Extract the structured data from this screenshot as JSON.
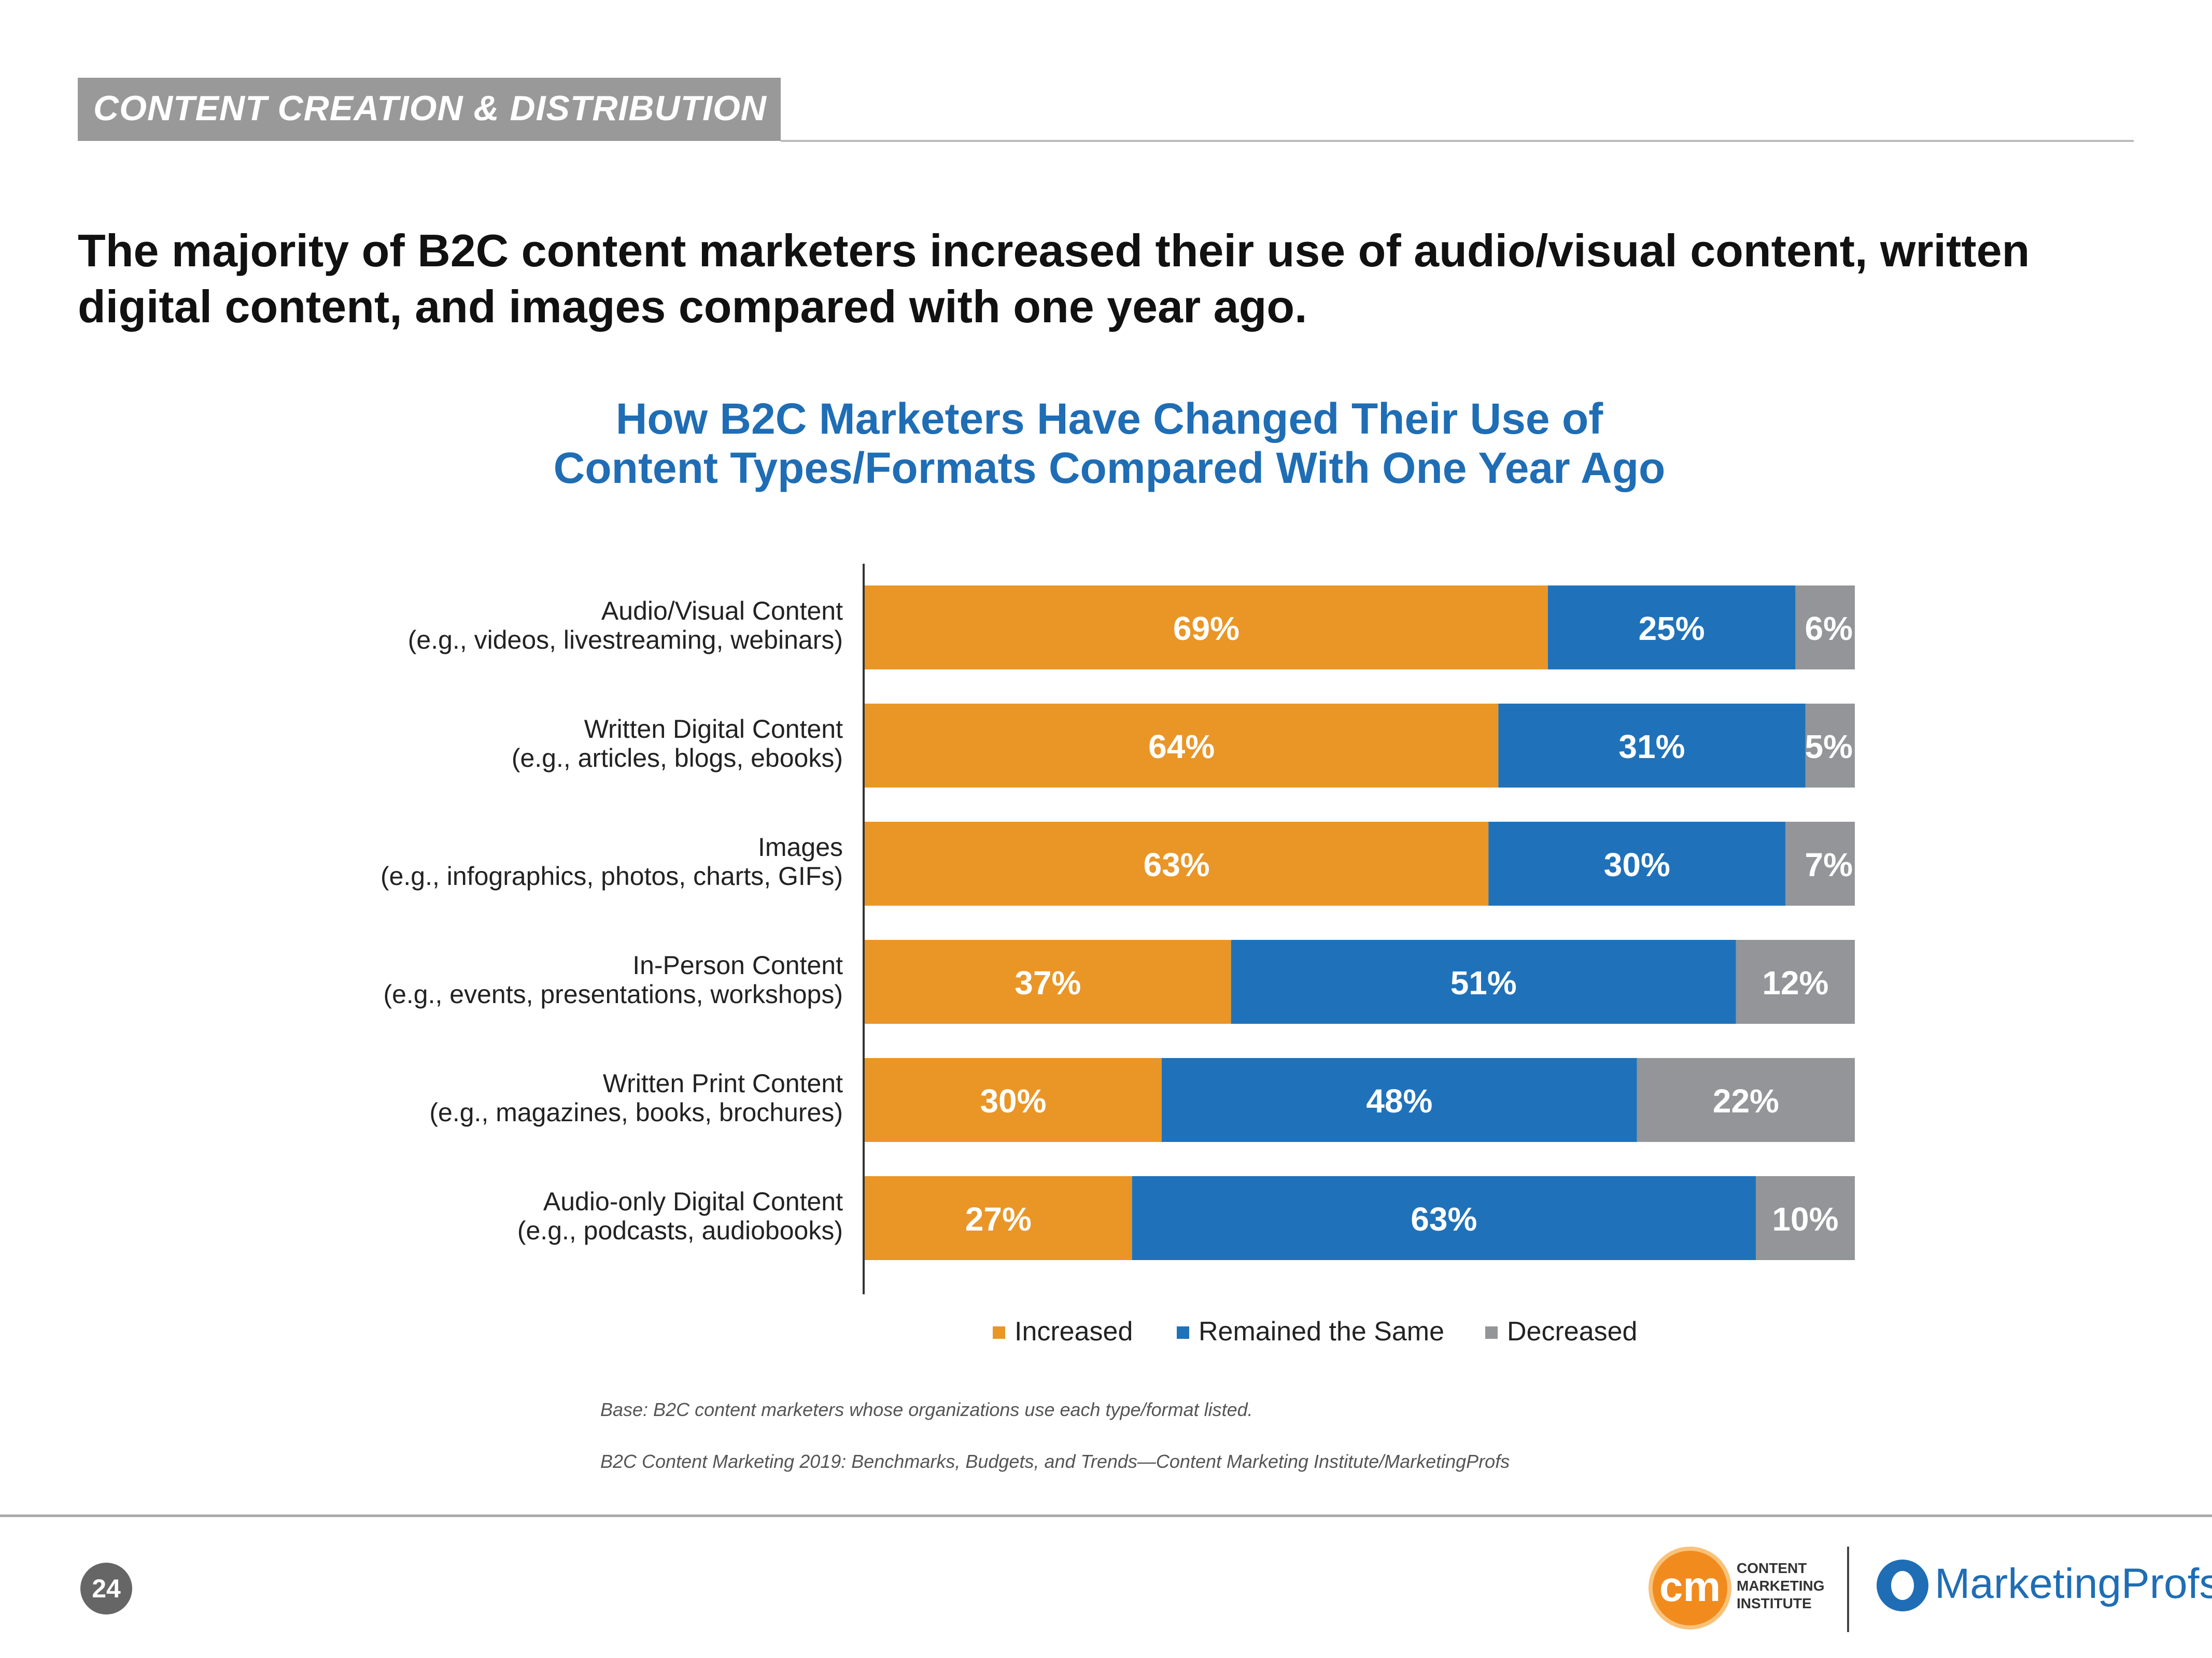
{
  "header": {
    "section_tag": "CONTENT CREATION & DISTRIBUTION",
    "headline_line1": "The majority of B2C content marketers increased their use of audio/visual content, written",
    "headline_line2": "digital content, and images compared with one year ago."
  },
  "chart_data": {
    "type": "bar",
    "orientation": "horizontal",
    "stacked": true,
    "title": "How B2C Marketers Have Changed Their Use of Content Types/Formats Compared With One Year Ago",
    "title_line1": "How B2C Marketers Have Changed Their Use of",
    "title_line2": "Content Types/Formats Compared With One Year Ago",
    "categories": [
      {
        "label": "Audio/Visual Content",
        "example": "(e.g., videos, livestreaming, webinars)"
      },
      {
        "label": "Written Digital Content",
        "example": "(e.g., articles, blogs, ebooks)"
      },
      {
        "label": "Images",
        "example": "(e.g., infographics, photos, charts, GIFs)"
      },
      {
        "label": "In-Person Content",
        "example": "(e.g., events, presentations, workshops)"
      },
      {
        "label": "Written Print Content",
        "example": "(e.g., magazines, books, brochures)"
      },
      {
        "label": "Audio-only Digital Content",
        "example": "(e.g., podcasts, audiobooks)"
      }
    ],
    "series": [
      {
        "name": "Increased",
        "color": "#e99627",
        "values": [
          69,
          64,
          63,
          37,
          30,
          27
        ]
      },
      {
        "name": "Remained the Same",
        "color": "#1f72ba",
        "values": [
          25,
          31,
          30,
          51,
          48,
          63
        ]
      },
      {
        "name": "Decreased",
        "color": "#939598",
        "values": [
          6,
          5,
          7,
          12,
          22,
          10
        ]
      }
    ],
    "value_suffix": "%",
    "xlim": [
      0,
      100
    ],
    "legend": "bottom",
    "xlabel": "",
    "ylabel": ""
  },
  "notes": {
    "base": "Base: B2C content marketers whose organizations use each type/format listed.",
    "source": "B2C Content Marketing 2019: Benchmarks, Budgets, and Trends—Content Marketing Institute/MarketingProfs"
  },
  "footer": {
    "page_number": "24",
    "cmi_mark": "cm",
    "cmi_line1": "CONTENT",
    "cmi_line2": "MARKETING",
    "cmi_line3": "INSTITUTE",
    "marketingprofs": "MarketingProfs"
  }
}
